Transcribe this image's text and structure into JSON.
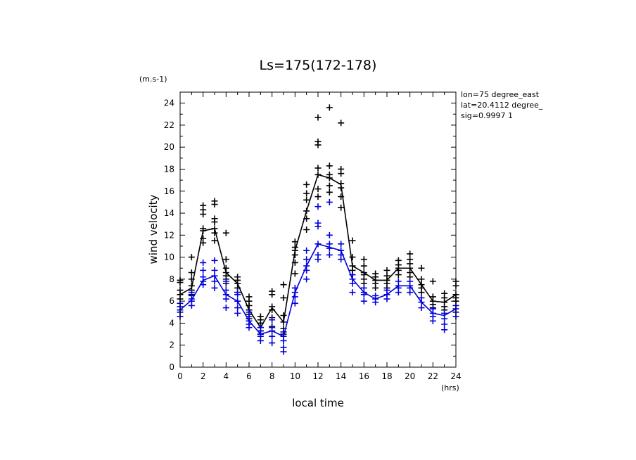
{
  "chart_data": {
    "type": "scatter",
    "title": "Ls=175(172-178)",
    "xlabel": "local time",
    "xunit": "(hrs)",
    "ylabel": "wind velocity",
    "yunit": "(m.s-1)",
    "xlim": [
      0,
      24
    ],
    "ylim": [
      0,
      25
    ],
    "xticks": [
      0,
      2,
      4,
      6,
      8,
      10,
      12,
      14,
      16,
      18,
      20,
      22,
      24
    ],
    "yticks": [
      0,
      2,
      4,
      6,
      8,
      10,
      12,
      14,
      16,
      18,
      20,
      22,
      24
    ],
    "info": [
      "lon=75 degree_east",
      "lat=20.4112 degree_",
      "sig=0.9997 1"
    ],
    "grid": false,
    "series": [
      {
        "color": "#000000",
        "x": [
          0,
          1,
          2,
          3,
          4,
          5,
          6,
          7,
          8,
          9,
          10,
          11,
          12,
          13,
          14,
          15,
          16,
          17,
          18,
          19,
          20,
          21,
          22,
          23,
          24
        ],
        "mean": [
          6.6,
          7.2,
          12.4,
          12.6,
          8.6,
          7.6,
          5.2,
          3.6,
          5.4,
          4.1,
          10.6,
          14.2,
          17.5,
          17.2,
          16.6,
          9.2,
          8.6,
          7.9,
          7.9,
          9.0,
          9.0,
          7.5,
          6.0,
          5.9,
          6.6
        ],
        "points": [
          [
            6.2,
            6.6,
            7.0,
            7.7,
            7.9
          ],
          [
            6.6,
            7.0,
            7.4,
            8.0,
            8.6,
            10.0
          ],
          [
            11.3,
            11.7,
            12.4,
            12.6,
            13.9,
            14.3,
            14.7
          ],
          [
            11.5,
            12.2,
            12.6,
            13.2,
            13.5,
            14.8,
            15.1
          ],
          [
            7.6,
            8.0,
            8.3,
            8.6,
            9.0,
            9.8,
            12.2
          ],
          [
            6.8,
            7.2,
            7.6,
            7.9,
            8.2
          ],
          [
            4.4,
            4.8,
            5.2,
            5.6,
            6.0,
            6.4
          ],
          [
            3.0,
            3.3,
            3.6,
            4.0,
            4.3,
            4.6
          ],
          [
            3.7,
            4.5,
            5.2,
            5.5,
            6.6,
            6.9
          ],
          [
            3.0,
            3.5,
            4.1,
            4.7,
            6.3,
            7.5
          ],
          [
            8.5,
            9.5,
            10.2,
            10.6,
            10.9,
            11.4
          ],
          [
            12.5,
            13.5,
            14.2,
            15.2,
            15.8,
            16.6
          ],
          [
            15.5,
            16.2,
            17.5,
            18.1,
            20.2,
            20.5,
            22.7
          ],
          [
            15.9,
            16.5,
            17.2,
            17.5,
            18.3,
            23.6
          ],
          [
            14.5,
            15.5,
            16.3,
            16.7,
            17.6,
            18.0,
            22.2
          ],
          [
            8.4,
            8.8,
            9.2,
            10.0,
            11.5
          ],
          [
            7.6,
            8.0,
            8.4,
            8.6,
            9.2,
            9.8
          ],
          [
            7.2,
            7.6,
            7.9,
            8.2,
            8.5
          ],
          [
            7.2,
            7.6,
            7.9,
            8.3,
            8.8
          ],
          [
            8.4,
            8.8,
            9.0,
            9.3,
            9.7
          ],
          [
            8.2,
            8.6,
            9.0,
            9.4,
            9.8,
            10.3
          ],
          [
            6.8,
            7.2,
            7.5,
            8.0,
            9.0
          ],
          [
            5.4,
            5.7,
            6.0,
            6.4,
            7.8
          ],
          [
            5.2,
            5.5,
            5.9,
            6.3,
            6.7
          ],
          [
            6.0,
            6.3,
            6.6,
            7.4,
            7.8
          ]
        ]
      },
      {
        "color": "#0000dd",
        "x": [
          0,
          1,
          2,
          3,
          4,
          5,
          6,
          7,
          8,
          9,
          10,
          11,
          12,
          13,
          14,
          15,
          16,
          17,
          18,
          19,
          20,
          21,
          22,
          23,
          24
        ],
        "mean": [
          5.2,
          6.1,
          7.9,
          8.3,
          6.6,
          6.0,
          4.2,
          3.0,
          3.3,
          2.8,
          6.8,
          9.2,
          11.2,
          10.9,
          10.6,
          8.0,
          6.8,
          6.2,
          6.6,
          7.4,
          7.4,
          5.9,
          4.9,
          4.7,
          5.3
        ],
        "points": [
          [
            4.6,
            5.0,
            5.2,
            5.5,
            5.8
          ],
          [
            5.6,
            6.0,
            6.2,
            6.5,
            6.8
          ],
          [
            7.5,
            7.8,
            8.2,
            8.8,
            9.5
          ],
          [
            7.2,
            7.8,
            8.3,
            8.8,
            9.7
          ],
          [
            5.4,
            6.2,
            6.6,
            7.0,
            7.8
          ],
          [
            4.9,
            5.4,
            6.0,
            6.6,
            6.8
          ],
          [
            3.6,
            3.9,
            4.2,
            4.6,
            5.0
          ],
          [
            2.4,
            2.8,
            3.0,
            3.3,
            3.6
          ],
          [
            2.2,
            2.8,
            3.3,
            3.6,
            4.3
          ],
          [
            1.4,
            1.8,
            2.4,
            2.8,
            3.2
          ],
          [
            5.8,
            6.4,
            6.8,
            7.2
          ],
          [
            8.0,
            8.8,
            9.2,
            9.8,
            10.6
          ],
          [
            9.8,
            10.2,
            11.2,
            12.8,
            13.1,
            14.6
          ],
          [
            10.2,
            10.8,
            11.2,
            12.0,
            15.0
          ],
          [
            9.8,
            10.2,
            10.6,
            11.2
          ],
          [
            6.8,
            7.6,
            8.0,
            8.4
          ],
          [
            6.0,
            6.6,
            6.8,
            7.2
          ],
          [
            5.9,
            6.2,
            6.5
          ],
          [
            6.2,
            6.6,
            7.0
          ],
          [
            6.8,
            7.2,
            7.4,
            7.8
          ],
          [
            6.8,
            7.2,
            7.4,
            7.8
          ],
          [
            5.4,
            5.9,
            6.3
          ],
          [
            4.2,
            4.6,
            4.9,
            5.3
          ],
          [
            3.4,
            3.9,
            4.4,
            4.9
          ],
          [
            4.6,
            5.0,
            5.3,
            5.6
          ]
        ]
      }
    ]
  }
}
